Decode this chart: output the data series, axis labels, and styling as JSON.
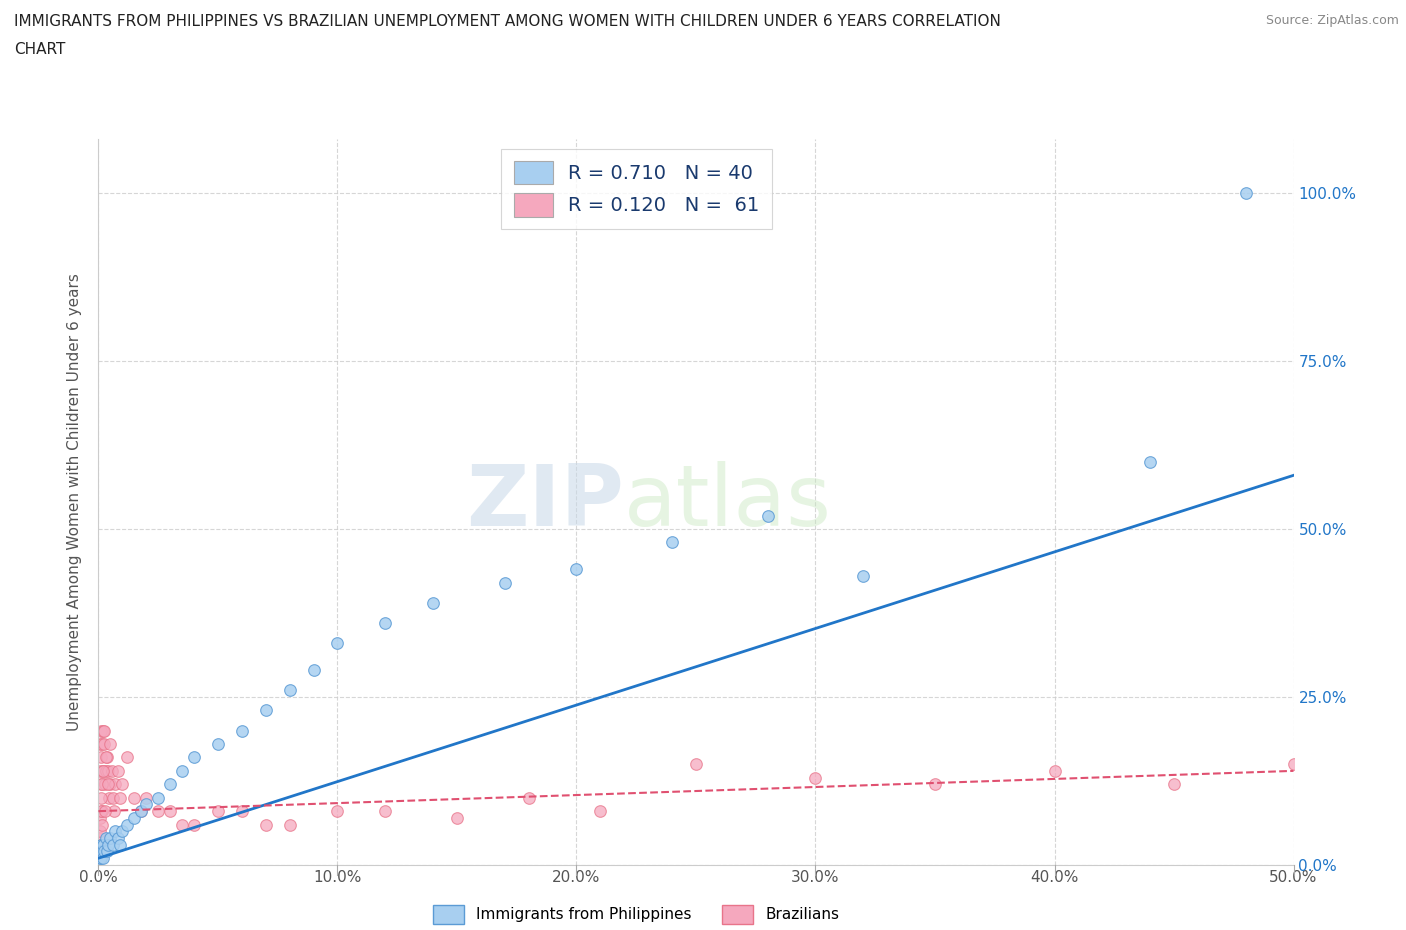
{
  "title_line1": "IMMIGRANTS FROM PHILIPPINES VS BRAZILIAN UNEMPLOYMENT AMONG WOMEN WITH CHILDREN UNDER 6 YEARS CORRELATION",
  "title_line2": "CHART",
  "source": "Source: ZipAtlas.com",
  "ylabel": "Unemployment Among Women with Children Under 6 years",
  "x_tick_labels": [
    "0.0%",
    "10.0%",
    "20.0%",
    "30.0%",
    "40.0%",
    "50.0%"
  ],
  "x_tick_vals": [
    0,
    10,
    20,
    30,
    40,
    50
  ],
  "y_tick_labels": [
    "0.0%",
    "25.0%",
    "50.0%",
    "75.0%",
    "100.0%"
  ],
  "y_tick_vals": [
    0,
    25,
    50,
    75,
    100
  ],
  "xlim": [
    0,
    50
  ],
  "ylim": [
    0,
    108
  ],
  "legend_entries": [
    {
      "label": "R = 0.710   N = 40",
      "color": "#a8cff0"
    },
    {
      "label": "R = 0.120   N =  61",
      "color": "#f5a8be"
    }
  ],
  "philippines_scatter": {
    "x": [
      0.05,
      0.08,
      0.1,
      0.12,
      0.15,
      0.18,
      0.2,
      0.25,
      0.3,
      0.35,
      0.4,
      0.5,
      0.6,
      0.7,
      0.8,
      0.9,
      1.0,
      1.2,
      1.5,
      1.8,
      2.0,
      2.5,
      3.0,
      3.5,
      4.0,
      5.0,
      6.0,
      7.0,
      8.0,
      9.0,
      10.0,
      12.0,
      14.0,
      17.0,
      20.0,
      24.0,
      28.0,
      32.0,
      44.0,
      48.0
    ],
    "y": [
      1,
      2,
      1,
      3,
      2,
      1,
      3,
      2,
      4,
      2,
      3,
      4,
      3,
      5,
      4,
      3,
      5,
      6,
      7,
      8,
      9,
      10,
      12,
      14,
      16,
      18,
      20,
      23,
      26,
      29,
      33,
      36,
      39,
      42,
      44,
      48,
      52,
      43,
      60,
      100
    ],
    "color": "#a8cff0",
    "edgecolor": "#5b9bd5",
    "size": 70
  },
  "brazil_scatter": {
    "x": [
      0.03,
      0.05,
      0.06,
      0.07,
      0.08,
      0.09,
      0.1,
      0.12,
      0.14,
      0.16,
      0.18,
      0.2,
      0.22,
      0.25,
      0.28,
      0.3,
      0.35,
      0.4,
      0.45,
      0.5,
      0.55,
      0.6,
      0.65,
      0.7,
      0.8,
      0.9,
      1.0,
      1.2,
      1.5,
      1.8,
      2.0,
      2.5,
      3.0,
      3.5,
      4.0,
      5.0,
      6.0,
      7.0,
      8.0,
      10.0,
      12.0,
      15.0,
      18.0,
      21.0,
      25.0,
      30.0,
      35.0,
      40.0,
      45.0,
      50.0,
      0.04,
      0.06,
      0.09,
      0.11,
      0.13,
      0.17,
      0.21,
      0.26,
      0.32,
      0.38,
      0.48
    ],
    "y": [
      2,
      4,
      7,
      14,
      18,
      20,
      16,
      12,
      8,
      18,
      20,
      14,
      20,
      18,
      12,
      14,
      16,
      14,
      10,
      12,
      14,
      10,
      8,
      12,
      14,
      10,
      12,
      16,
      10,
      8,
      10,
      8,
      8,
      6,
      6,
      8,
      8,
      6,
      6,
      8,
      8,
      7,
      10,
      8,
      15,
      13,
      12,
      14,
      12,
      15,
      3,
      5,
      8,
      10,
      6,
      12,
      14,
      8,
      16,
      12,
      18
    ],
    "color": "#f5a8be",
    "edgecolor": "#e8748a",
    "size": 70
  },
  "philippines_line": {
    "color": "#2176c8",
    "linewidth": 2.0,
    "linestyle": "-",
    "x0": 0,
    "y0": 1,
    "x1": 50,
    "y1": 58
  },
  "brazil_line": {
    "color": "#e05070",
    "linewidth": 1.5,
    "linestyle": "--",
    "x0": 0,
    "y0": 8,
    "x1": 50,
    "y1": 14
  },
  "watermark_part1": "ZIP",
  "watermark_part2": "atlas",
  "background_color": "#ffffff",
  "grid_color": "#cccccc",
  "title_color": "#222222",
  "label_color": "#555555",
  "tick_color": "#555555",
  "right_tick_color": "#2176c8"
}
